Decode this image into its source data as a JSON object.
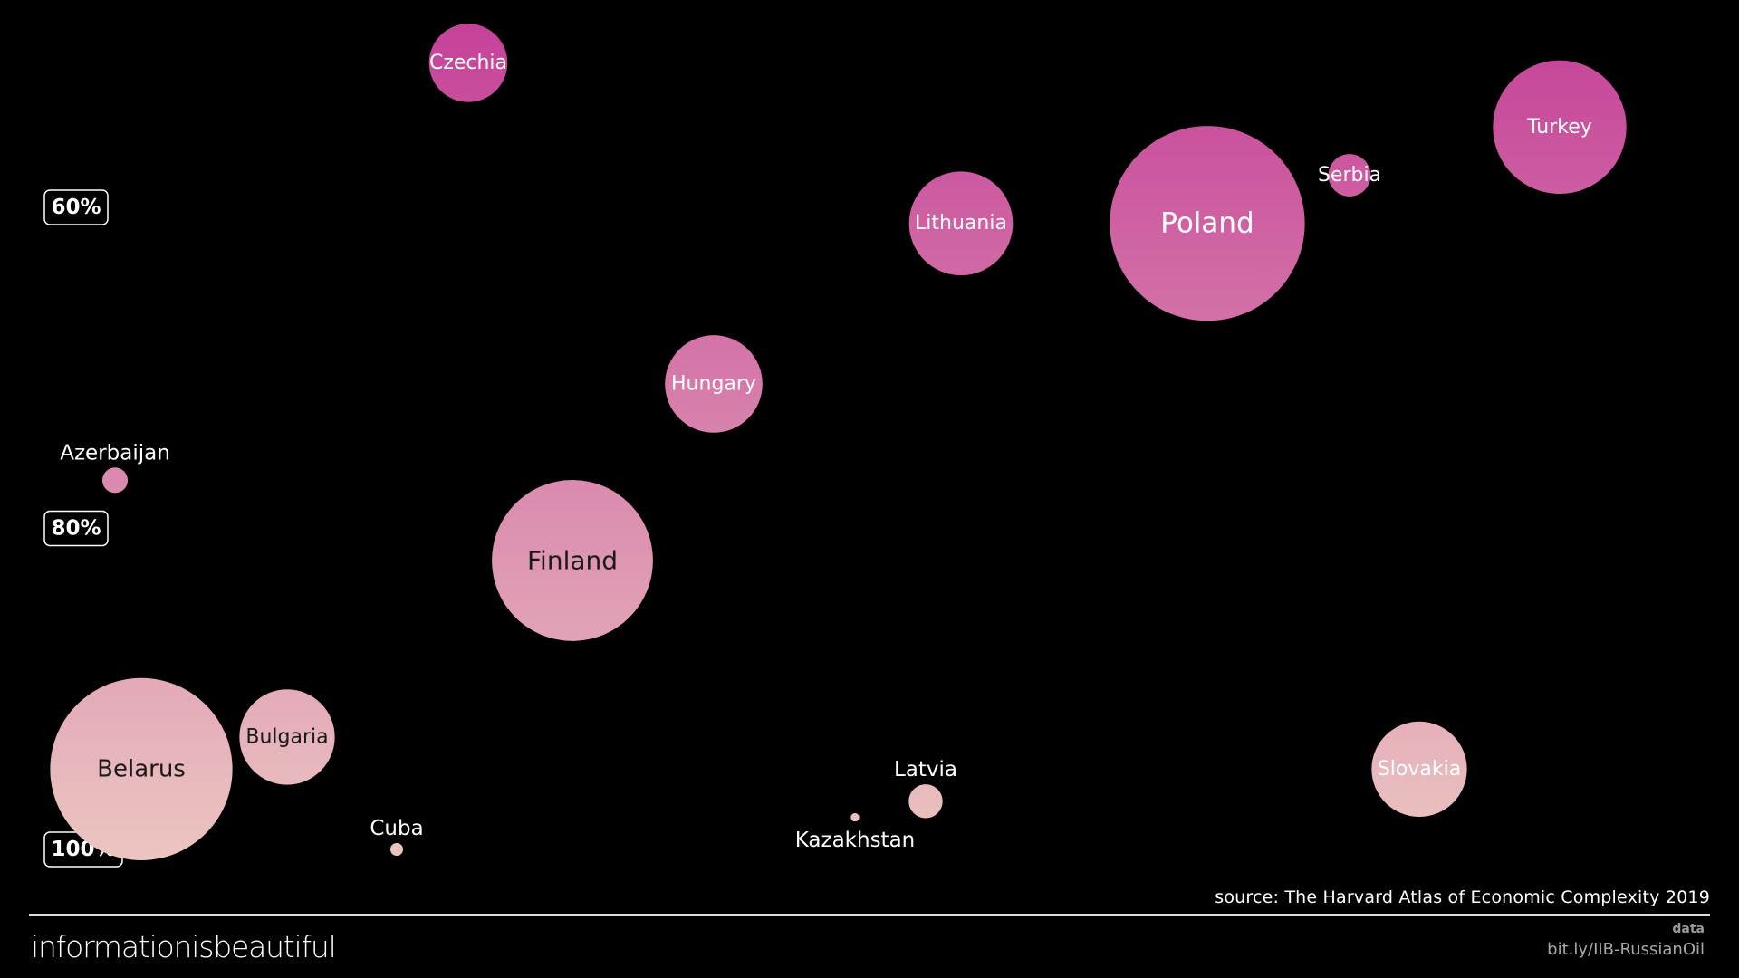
{
  "colors": {
    "background": "#000000",
    "bubble_top": "#c43e98",
    "bubble_bottom": "#ecc7c1",
    "pill_border": "#ffffff"
  },
  "chart_data": {
    "type": "scatter",
    "title": "",
    "ylabel": "",
    "xlabel": "",
    "ylim": [
      58,
      103
    ],
    "y_ticks": [
      {
        "value": 60,
        "label": "60%"
      },
      {
        "value": 80,
        "label": "80%"
      },
      {
        "value": 100,
        "label": "100%"
      }
    ],
    "grid": false,
    "legend": "none",
    "series": [
      {
        "points": [
          {
            "label": "Czechia",
            "y": 51,
            "size": 37
          },
          {
            "label": "Turkey",
            "y": 55,
            "size": 63
          },
          {
            "label": "Serbia",
            "y": 58,
            "size": 20
          },
          {
            "label": "Lithuania",
            "y": 61,
            "size": 49
          },
          {
            "label": "Poland",
            "y": 61,
            "size": 92
          },
          {
            "label": "Hungary",
            "y": 71,
            "size": 46
          },
          {
            "label": "Azerbaijan",
            "y": 77,
            "size": 12
          },
          {
            "label": "Finland",
            "y": 82,
            "size": 76
          },
          {
            "label": "Bulgaria",
            "y": 93,
            "size": 45
          },
          {
            "label": "Belarus",
            "y": 95,
            "size": 86
          },
          {
            "label": "Slovakia",
            "y": 95,
            "size": 45
          },
          {
            "label": "Latvia",
            "y": 97,
            "size": 16
          },
          {
            "label": "Kazakhstan",
            "y": 98,
            "size": 4
          },
          {
            "label": "Cuba",
            "y": 100,
            "size": 6
          }
        ]
      }
    ]
  },
  "footer": {
    "source": "source: The Harvard Atlas of Economic Complexity 2019",
    "brand": "informationisbeautiful",
    "data_label": "data",
    "data_link": "bit.ly/IIB-RussianOil"
  }
}
